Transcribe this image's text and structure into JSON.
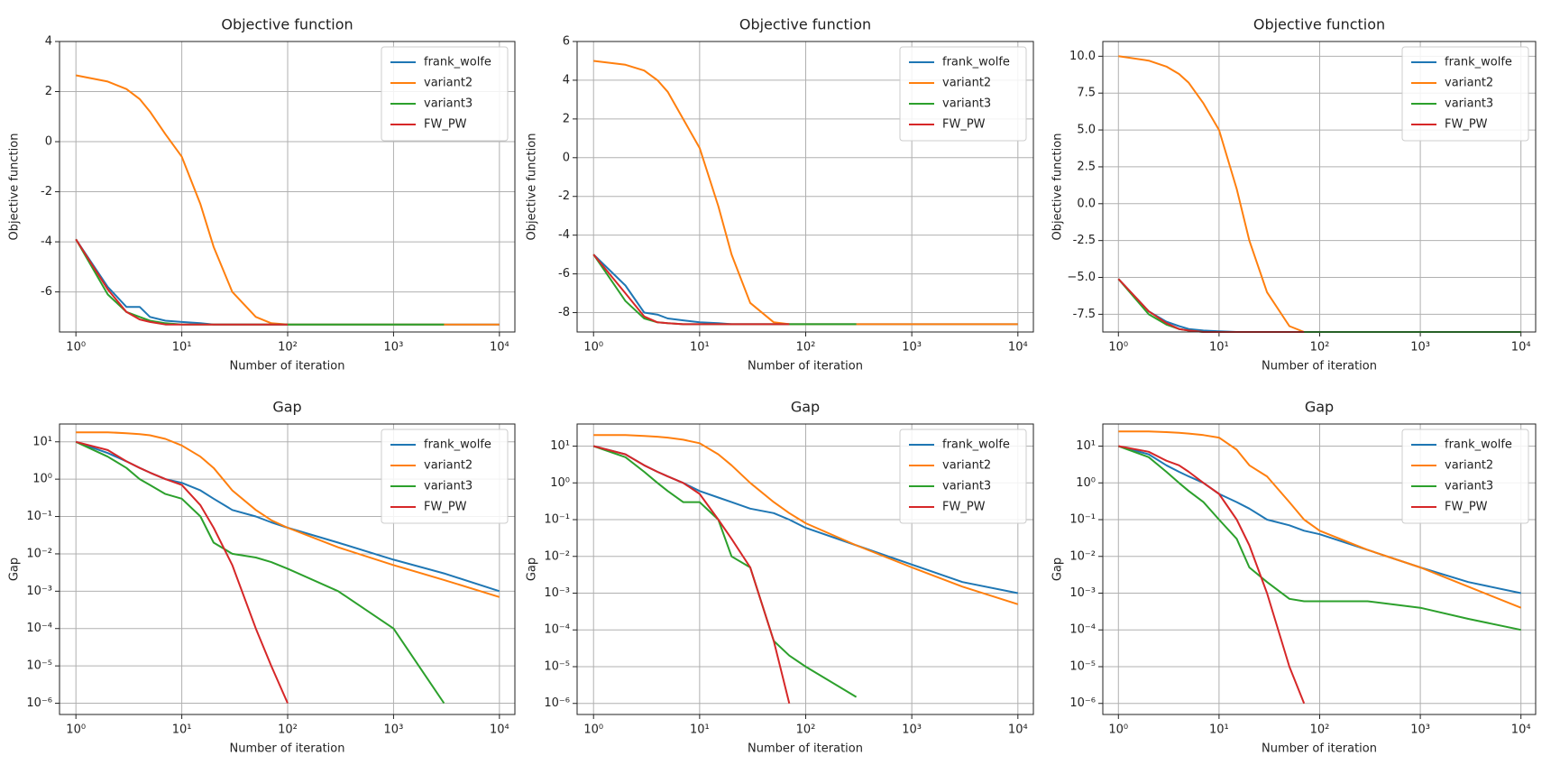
{
  "chart_data": [
    {
      "type": "line",
      "title": "Objective function",
      "x_label": "Number of iteration",
      "y_label": "Objective function",
      "xscale": "log",
      "grid": true,
      "legend": "upper right",
      "xlim": [
        0.7,
        14000
      ],
      "xticks": [
        {
          "value": 1,
          "label": "10⁰"
        },
        {
          "value": 10,
          "label": "10¹"
        },
        {
          "value": 100,
          "label": "10²"
        },
        {
          "value": 1000,
          "label": "10³"
        },
        {
          "value": 10000,
          "label": "10⁴"
        }
      ],
      "ylim": [
        -7.6,
        4
      ],
      "yticks": [
        -6,
        -4,
        -2,
        0,
        2,
        4
      ],
      "x": [
        1,
        2,
        3,
        4,
        5,
        7,
        10,
        15,
        20,
        30,
        50,
        70,
        100,
        300,
        1000,
        3000,
        10000
      ],
      "series": [
        {
          "name": "frank_wolfe",
          "color": "#1f77b4",
          "values": [
            -3.9,
            -5.8,
            -6.6,
            -6.6,
            -7.0,
            -7.15,
            -7.2,
            -7.25,
            -7.3,
            -7.3,
            -7.3,
            -7.3,
            -7.3,
            -7.3,
            -7.3,
            -7.3,
            -7.3
          ]
        },
        {
          "name": "variant2",
          "color": "#ff7f0e",
          "values": [
            2.65,
            2.4,
            2.1,
            1.7,
            1.2,
            0.3,
            -0.6,
            -2.5,
            -4.2,
            -6.0,
            -7.0,
            -7.25,
            -7.3,
            -7.3,
            -7.3,
            -7.3,
            -7.3
          ]
        },
        {
          "name": "variant3",
          "color": "#2ca02c",
          "values": [
            -3.9,
            -6.1,
            -6.8,
            -7.0,
            -7.15,
            -7.25,
            -7.3,
            -7.3,
            -7.3,
            -7.3,
            -7.3,
            -7.3,
            -7.3,
            -7.3,
            -7.3,
            -7.3,
            null
          ]
        },
        {
          "name": "FW_PW",
          "color": "#d62728",
          "values": [
            -3.9,
            -5.9,
            -6.8,
            -7.1,
            -7.2,
            -7.3,
            -7.3,
            -7.3,
            -7.3,
            -7.3,
            -7.3,
            -7.3,
            -7.3,
            null,
            null,
            null,
            null
          ]
        }
      ]
    },
    {
      "type": "line",
      "title": "Objective function",
      "x_label": "Number of iteration",
      "y_label": "Objective function",
      "xscale": "log",
      "grid": true,
      "legend": "upper right",
      "xlim": [
        0.7,
        14000
      ],
      "xticks": [
        {
          "value": 1,
          "label": "10⁰"
        },
        {
          "value": 10,
          "label": "10¹"
        },
        {
          "value": 100,
          "label": "10²"
        },
        {
          "value": 1000,
          "label": "10³"
        },
        {
          "value": 10000,
          "label": "10⁴"
        }
      ],
      "ylim": [
        -9,
        6
      ],
      "yticks": [
        -8,
        -6,
        -4,
        -2,
        0,
        2,
        4,
        6
      ],
      "x": [
        1,
        2,
        3,
        4,
        5,
        7,
        10,
        15,
        20,
        30,
        50,
        70,
        100,
        300,
        1000,
        3000,
        10000
      ],
      "series": [
        {
          "name": "frank_wolfe",
          "color": "#1f77b4",
          "values": [
            -5,
            -6.6,
            -8.0,
            -8.1,
            -8.3,
            -8.4,
            -8.5,
            -8.55,
            -8.6,
            -8.6,
            -8.6,
            -8.6,
            -8.6,
            -8.6,
            -8.6,
            -8.6,
            -8.6
          ]
        },
        {
          "name": "variant2",
          "color": "#ff7f0e",
          "values": [
            5,
            4.8,
            4.5,
            4.0,
            3.4,
            2.0,
            0.5,
            -2.5,
            -5,
            -7.5,
            -8.5,
            -8.6,
            -8.6,
            -8.6,
            -8.6,
            -8.6,
            -8.6
          ]
        },
        {
          "name": "variant3",
          "color": "#2ca02c",
          "values": [
            -5,
            -7.4,
            -8.3,
            -8.5,
            -8.55,
            -8.6,
            -8.6,
            -8.6,
            -8.6,
            -8.6,
            -8.6,
            -8.6,
            -8.6,
            -8.6,
            null,
            null,
            null
          ]
        },
        {
          "name": "FW_PW",
          "color": "#d62728",
          "values": [
            -5,
            -7.0,
            -8.2,
            -8.5,
            -8.55,
            -8.6,
            -8.6,
            -8.6,
            -8.6,
            -8.6,
            -8.6,
            -8.6,
            null,
            null,
            null,
            null,
            null
          ]
        }
      ]
    },
    {
      "type": "line",
      "title": "Objective function",
      "x_label": "Number of iteration",
      "y_label": "Objective function",
      "xscale": "log",
      "grid": true,
      "legend": "upper right",
      "xlim": [
        0.7,
        14000
      ],
      "xticks": [
        {
          "value": 1,
          "label": "10⁰"
        },
        {
          "value": 10,
          "label": "10¹"
        },
        {
          "value": 100,
          "label": "10²"
        },
        {
          "value": 1000,
          "label": "10³"
        },
        {
          "value": 10000,
          "label": "10⁴"
        }
      ],
      "ylim": [
        -8.7,
        11
      ],
      "yticks": [
        -7.5,
        {
          "value": -5,
          "label": "−5.0"
        },
        -2.5,
        {
          "value": 0,
          "label": "0.0"
        },
        2.5,
        {
          "value": 5,
          "label": "5.0"
        },
        7.5,
        {
          "value": 10,
          "label": "10.0"
        }
      ],
      "x": [
        1,
        2,
        3,
        4,
        5,
        7,
        10,
        15,
        20,
        30,
        50,
        70,
        100,
        300,
        1000,
        3000,
        10000
      ],
      "series": [
        {
          "name": "frank_wolfe",
          "color": "#1f77b4",
          "values": [
            -5.1,
            -7.3,
            -8.0,
            -8.3,
            -8.5,
            -8.6,
            -8.65,
            -8.7,
            -8.7,
            -8.7,
            -8.7,
            -8.7,
            -8.7,
            -8.7,
            -8.7,
            -8.7,
            -8.7
          ]
        },
        {
          "name": "variant2",
          "color": "#ff7f0e",
          "values": [
            10,
            9.7,
            9.3,
            8.8,
            8.2,
            6.8,
            5.0,
            1.0,
            -2.5,
            -6.0,
            -8.3,
            -8.7,
            -8.7,
            -8.7,
            -8.7,
            -8.7,
            -8.7
          ]
        },
        {
          "name": "variant3",
          "color": "#2ca02c",
          "values": [
            -5.1,
            -7.5,
            -8.2,
            -8.5,
            -8.6,
            -8.7,
            -8.7,
            -8.7,
            -8.7,
            -8.7,
            -8.7,
            -8.7,
            -8.7,
            -8.7,
            -8.7,
            -8.7,
            -8.7
          ]
        },
        {
          "name": "FW_PW",
          "color": "#d62728",
          "values": [
            -5.1,
            -7.3,
            -8.1,
            -8.5,
            -8.6,
            -8.7,
            -8.7,
            -8.7,
            -8.7,
            -8.7,
            -8.7,
            -8.7,
            null,
            null,
            null,
            null,
            null
          ]
        }
      ]
    },
    {
      "type": "line",
      "title": "Gap",
      "x_label": "Number of iteration",
      "y_label": "Gap",
      "xscale": "log",
      "yscale": "log",
      "grid": true,
      "legend": "upper right",
      "xlim": [
        0.7,
        14000
      ],
      "xticks": [
        {
          "value": 1,
          "label": "10⁰"
        },
        {
          "value": 10,
          "label": "10¹"
        },
        {
          "value": 100,
          "label": "10²"
        },
        {
          "value": 1000,
          "label": "10³"
        },
        {
          "value": 10000,
          "label": "10⁴"
        }
      ],
      "ylim": [
        5e-07,
        30
      ],
      "yticks": [
        {
          "value": 1e-06,
          "label": "10⁻⁶"
        },
        {
          "value": 1e-05,
          "label": "10⁻⁵"
        },
        {
          "value": 0.0001,
          "label": "10⁻⁴"
        },
        {
          "value": 0.001,
          "label": "10⁻³"
        },
        {
          "value": 0.01,
          "label": "10⁻²"
        },
        {
          "value": 0.1,
          "label": "10⁻¹"
        },
        {
          "value": 1,
          "label": "10⁰"
        },
        {
          "value": 10,
          "label": "10¹"
        }
      ],
      "x": [
        1,
        2,
        3,
        4,
        5,
        7,
        10,
        15,
        20,
        30,
        50,
        70,
        100,
        300,
        1000,
        3000,
        10000
      ],
      "series": [
        {
          "name": "frank_wolfe",
          "color": "#1f77b4",
          "values": [
            10,
            5,
            3,
            2,
            1.5,
            1.0,
            0.8,
            0.5,
            0.3,
            0.15,
            0.1,
            0.07,
            0.05,
            0.02,
            0.007,
            0.003,
            0.001
          ]
        },
        {
          "name": "variant2",
          "color": "#ff7f0e",
          "values": [
            18,
            18,
            17,
            16,
            15,
            12,
            8,
            4,
            2,
            0.5,
            0.15,
            0.08,
            0.05,
            0.015,
            0.005,
            0.002,
            0.0007
          ]
        },
        {
          "name": "variant3",
          "color": "#2ca02c",
          "values": [
            10,
            4,
            2,
            1,
            0.7,
            0.4,
            0.3,
            0.1,
            0.02,
            0.01,
            0.008,
            0.006,
            0.004,
            0.001,
            0.0001,
            1e-06,
            null
          ]
        },
        {
          "name": "FW_PW",
          "color": "#d62728",
          "values": [
            10,
            6,
            3,
            2,
            1.5,
            1.0,
            0.7,
            0.2,
            0.05,
            0.005,
            0.0001,
            1e-05,
            1e-06,
            null,
            null,
            null,
            null
          ]
        }
      ]
    },
    {
      "type": "line",
      "title": "Gap",
      "x_label": "Number of iteration",
      "y_label": "Gap",
      "xscale": "log",
      "yscale": "log",
      "grid": true,
      "legend": "upper right",
      "xlim": [
        0.7,
        14000
      ],
      "xticks": [
        {
          "value": 1,
          "label": "10⁰"
        },
        {
          "value": 10,
          "label": "10¹"
        },
        {
          "value": 100,
          "label": "10²"
        },
        {
          "value": 1000,
          "label": "10³"
        },
        {
          "value": 10000,
          "label": "10⁴"
        }
      ],
      "ylim": [
        5e-07,
        40
      ],
      "yticks": [
        {
          "value": 1e-06,
          "label": "10⁻⁶"
        },
        {
          "value": 1e-05,
          "label": "10⁻⁵"
        },
        {
          "value": 0.0001,
          "label": "10⁻⁴"
        },
        {
          "value": 0.001,
          "label": "10⁻³"
        },
        {
          "value": 0.01,
          "label": "10⁻²"
        },
        {
          "value": 0.1,
          "label": "10⁻¹"
        },
        {
          "value": 1,
          "label": "10⁰"
        },
        {
          "value": 10,
          "label": "10¹"
        }
      ],
      "x": [
        1,
        2,
        3,
        4,
        5,
        7,
        10,
        15,
        20,
        30,
        50,
        70,
        100,
        300,
        1000,
        3000,
        10000
      ],
      "series": [
        {
          "name": "frank_wolfe",
          "color": "#1f77b4",
          "values": [
            10,
            6,
            3,
            2,
            1.5,
            1,
            0.6,
            0.4,
            0.3,
            0.2,
            0.15,
            0.1,
            0.06,
            0.02,
            0.006,
            0.002,
            0.001
          ]
        },
        {
          "name": "variant2",
          "color": "#ff7f0e",
          "values": [
            20,
            20,
            19,
            18,
            17,
            15,
            12,
            6,
            3,
            1.0,
            0.3,
            0.15,
            0.08,
            0.02,
            0.005,
            0.0015,
            0.0005
          ]
        },
        {
          "name": "variant3",
          "color": "#2ca02c",
          "values": [
            10,
            5,
            2,
            1,
            0.6,
            0.3,
            0.3,
            0.1,
            0.01,
            0.005,
            5e-05,
            2e-05,
            1e-05,
            1.5e-06,
            null,
            null,
            null
          ]
        },
        {
          "name": "FW_PW",
          "color": "#d62728",
          "values": [
            10,
            6,
            3,
            2,
            1.5,
            1,
            0.5,
            0.1,
            0.03,
            0.005,
            5e-05,
            1e-06,
            null,
            null,
            null,
            null,
            null
          ]
        }
      ]
    },
    {
      "type": "line",
      "title": "Gap",
      "x_label": "Number of iteration",
      "y_label": "Gap",
      "xscale": "log",
      "yscale": "log",
      "grid": true,
      "legend": "upper right",
      "xlim": [
        0.7,
        14000
      ],
      "xticks": [
        {
          "value": 1,
          "label": "10⁰"
        },
        {
          "value": 10,
          "label": "10¹"
        },
        {
          "value": 100,
          "label": "10²"
        },
        {
          "value": 1000,
          "label": "10³"
        },
        {
          "value": 10000,
          "label": "10⁴"
        }
      ],
      "ylim": [
        5e-07,
        40
      ],
      "yticks": [
        {
          "value": 1e-06,
          "label": "10⁻⁶"
        },
        {
          "value": 1e-05,
          "label": "10⁻⁵"
        },
        {
          "value": 0.0001,
          "label": "10⁻⁴"
        },
        {
          "value": 0.001,
          "label": "10⁻³"
        },
        {
          "value": 0.01,
          "label": "10⁻²"
        },
        {
          "value": 0.1,
          "label": "10⁻¹"
        },
        {
          "value": 1,
          "label": "10⁰"
        },
        {
          "value": 10,
          "label": "10¹"
        }
      ],
      "x": [
        1,
        2,
        3,
        4,
        5,
        7,
        10,
        15,
        20,
        30,
        50,
        70,
        100,
        300,
        1000,
        3000,
        10000
      ],
      "series": [
        {
          "name": "frank_wolfe",
          "color": "#1f77b4",
          "values": [
            10,
            6,
            3,
            2,
            1.5,
            1,
            0.5,
            0.3,
            0.2,
            0.1,
            0.07,
            0.05,
            0.04,
            0.015,
            0.005,
            0.002,
            0.001
          ]
        },
        {
          "name": "variant2",
          "color": "#ff7f0e",
          "values": [
            25,
            25,
            24,
            23,
            22,
            20,
            17,
            8,
            3,
            1.5,
            0.3,
            0.1,
            0.05,
            0.015,
            0.005,
            0.0015,
            0.0004
          ]
        },
        {
          "name": "variant3",
          "color": "#2ca02c",
          "values": [
            10,
            5,
            2,
            1,
            0.6,
            0.3,
            0.1,
            0.03,
            0.005,
            0.002,
            0.0007,
            0.0006,
            0.0006,
            0.0006,
            0.0004,
            0.0002,
            0.0001
          ]
        },
        {
          "name": "FW_PW",
          "color": "#d62728",
          "values": [
            10,
            7,
            4,
            3,
            2,
            1,
            0.5,
            0.1,
            0.02,
            0.001,
            1e-05,
            1e-06,
            null,
            null,
            null,
            null,
            null
          ]
        }
      ]
    }
  ]
}
